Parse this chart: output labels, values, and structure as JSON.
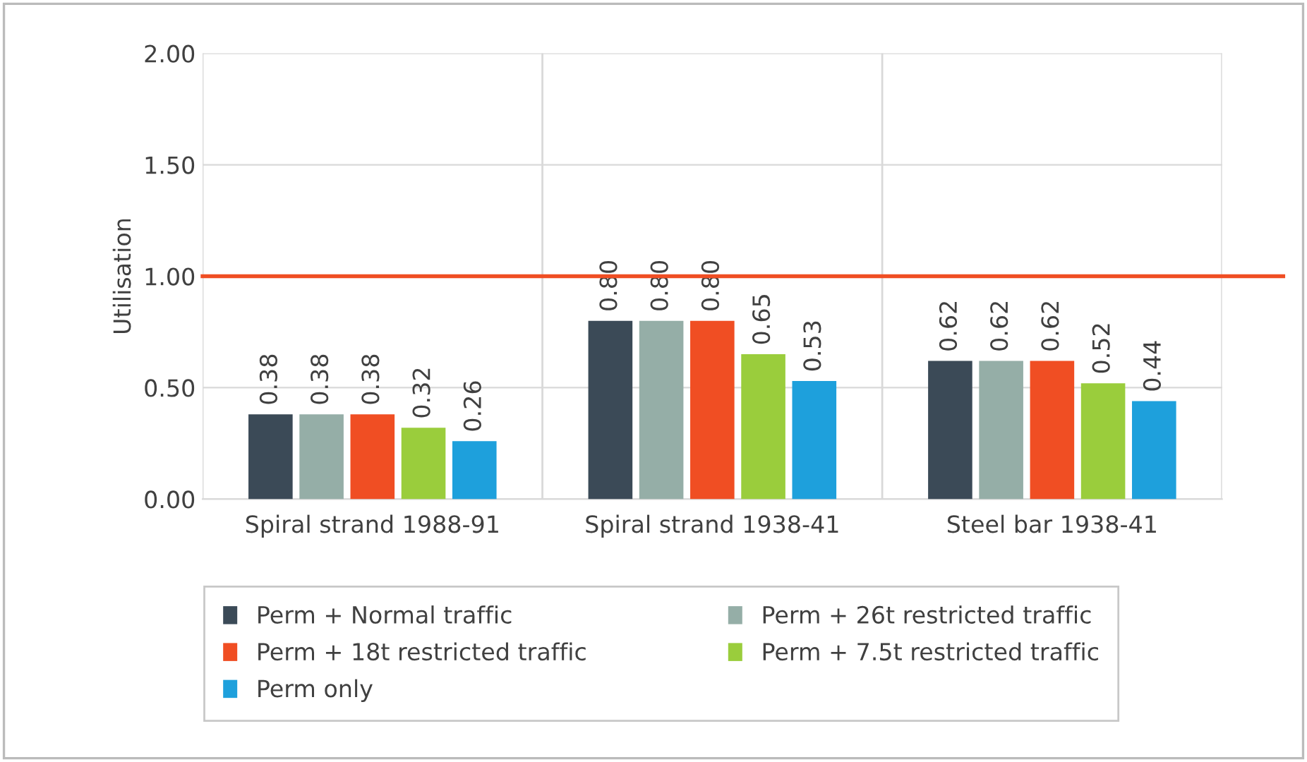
{
  "chart_data": {
    "type": "bar",
    "ylabel": "Utilisation",
    "categories": [
      "Spiral strand 1988-91",
      "Spiral strand 1938-41",
      "Steel bar 1938-41"
    ],
    "series": [
      {
        "name": "Perm + Normal traffic",
        "color": "#3b4a57",
        "values": [
          0.38,
          0.8,
          0.62
        ],
        "value_labels": [
          "0.38",
          "0.80",
          "0.62"
        ]
      },
      {
        "name": "Perm + 26t restricted traffic",
        "color": "#95aea7",
        "values": [
          0.38,
          0.8,
          0.62
        ],
        "value_labels": [
          "0.38",
          "0.80",
          "0.62"
        ]
      },
      {
        "name": "Perm + 18t restricted traffic",
        "color": "#f04e23",
        "values": [
          0.38,
          0.8,
          0.62
        ],
        "value_labels": [
          "0.38",
          "0.80",
          "0.62"
        ]
      },
      {
        "name": "Perm + 7.5t restricted traffic",
        "color": "#9acd3c",
        "values": [
          0.32,
          0.65,
          0.52
        ],
        "value_labels": [
          "0.32",
          "0.65",
          "0.52"
        ]
      },
      {
        "name": "Perm only",
        "color": "#1ea0dc",
        "values": [
          0.26,
          0.53,
          0.44
        ],
        "value_labels": [
          "0.26",
          "0.53",
          "0.44"
        ]
      }
    ],
    "ylim": [
      0,
      2
    ],
    "yticks": [
      {
        "value": 0,
        "label": "0.00"
      },
      {
        "value": 0.5,
        "label": "0.50"
      },
      {
        "value": 1,
        "label": "1.00"
      },
      {
        "value": 1.5,
        "label": "1.50"
      },
      {
        "value": 2,
        "label": "2.00"
      }
    ],
    "ref_lines": [
      {
        "axis": "y",
        "value": 1,
        "color": "#f04e23"
      }
    ],
    "grid": true,
    "legend": "bottom"
  }
}
